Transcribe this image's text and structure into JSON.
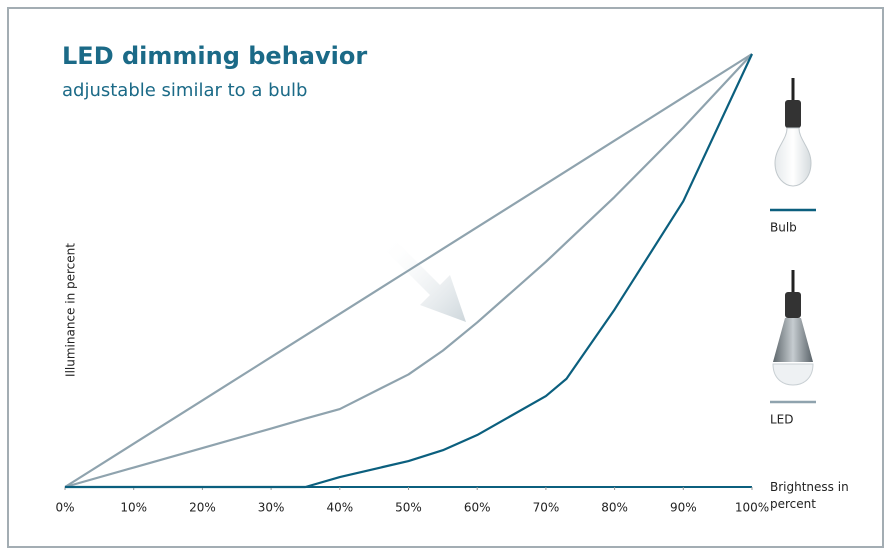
{
  "chart_data": {
    "type": "line",
    "title": "LED dimming behavior",
    "subtitle": "adjustable similar to a bulb",
    "y_label": "Illuminance in percent",
    "x_label": "Brightness in percent",
    "x": [
      0,
      10,
      20,
      30,
      35,
      40,
      50,
      55,
      60,
      70,
      73,
      80,
      90,
      100
    ],
    "series": [
      {
        "name": "Bulb",
        "color": "#0b5f7e",
        "values": [
          0,
          0,
          0,
          0,
          0,
          2.3,
          6,
          8.5,
          12,
          21,
          25,
          41,
          66,
          100
        ]
      },
      {
        "name": "LED",
        "color": "#8fa3ae",
        "values": [
          0,
          10,
          20,
          30,
          35,
          40,
          50,
          55,
          60,
          70,
          73,
          80,
          90,
          100
        ]
      },
      {
        "color": "#8fa3ae",
        "values": [
          0,
          4.5,
          9,
          13.5,
          15.8,
          18,
          26,
          31.5,
          38,
          52,
          56.5,
          67,
          83,
          100
        ]
      }
    ],
    "xlim": [
      0,
      100
    ],
    "ylim": [
      0,
      100
    ],
    "xticks": [
      {
        "value": 0,
        "label": "0%"
      },
      {
        "value": 10,
        "label": "10%"
      },
      {
        "value": 20,
        "label": "20%"
      },
      {
        "value": 30,
        "label": "30%"
      },
      {
        "value": 40,
        "label": "40%"
      },
      {
        "value": 50,
        "label": "50%"
      },
      {
        "value": 60,
        "label": "60%"
      },
      {
        "value": 70,
        "label": "70%"
      },
      {
        "value": 80,
        "label": "80%"
      },
      {
        "value": 90,
        "label": "90%"
      },
      {
        "value": 100,
        "label": "100%"
      }
    ]
  }
}
